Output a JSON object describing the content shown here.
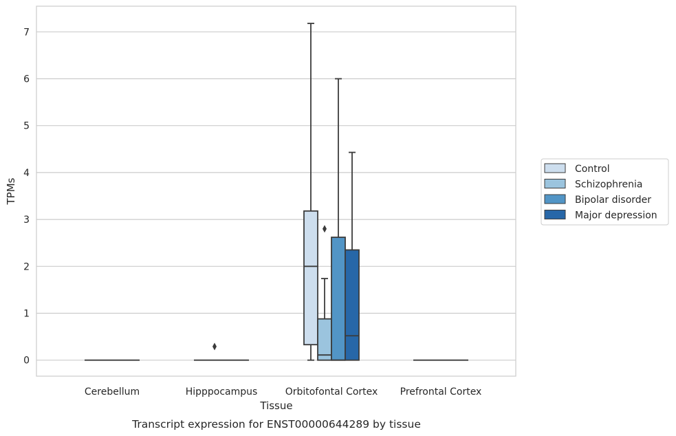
{
  "chart_data": {
    "type": "box",
    "caption": "Transcript expression for ENST00000644289 by tissue",
    "xlabel": "Tissue",
    "ylabel": "TPMs",
    "ylim": [
      -0.35,
      7.55
    ],
    "yticks": [
      0,
      1,
      2,
      3,
      4,
      5,
      6,
      7
    ],
    "grid": "horizontal",
    "legend_position": "right",
    "categories": [
      "Cerebellum",
      "Hipppocampus",
      "Orbitofontal Cortex",
      "Prefrontal Cortex"
    ],
    "series": [
      {
        "name": "Control",
        "color": "#cddeee",
        "boxes": [
          {
            "category": "Cerebellum",
            "min": 0,
            "q1": 0,
            "median": 0,
            "q3": 0,
            "max": 0,
            "outliers": []
          },
          {
            "category": "Hipppocampus",
            "min": 0,
            "q1": 0,
            "median": 0,
            "q3": 0,
            "max": 0,
            "outliers": []
          },
          {
            "category": "Orbitofontal Cortex",
            "min": 0,
            "q1": 0.33,
            "median": 2.0,
            "q3": 3.18,
            "max": 7.18,
            "outliers": []
          },
          {
            "category": "Prefrontal Cortex",
            "min": 0,
            "q1": 0,
            "median": 0,
            "q3": 0,
            "max": 0,
            "outliers": []
          }
        ]
      },
      {
        "name": "Schizophrenia",
        "color": "#9bc4de",
        "boxes": [
          {
            "category": "Cerebellum",
            "min": 0,
            "q1": 0,
            "median": 0,
            "q3": 0,
            "max": 0,
            "outliers": []
          },
          {
            "category": "Hipppocampus",
            "min": 0,
            "q1": 0,
            "median": 0,
            "q3": 0,
            "max": 0,
            "outliers": [
              0.29
            ]
          },
          {
            "category": "Orbitofontal Cortex",
            "min": 0,
            "q1": 0,
            "median": 0.11,
            "q3": 0.88,
            "max": 1.74,
            "outliers": [
              2.8
            ]
          },
          {
            "category": "Prefrontal Cortex",
            "min": 0,
            "q1": 0,
            "median": 0,
            "q3": 0,
            "max": 0,
            "outliers": []
          }
        ]
      },
      {
        "name": "Bipolar disorder",
        "color": "#5295c6",
        "boxes": [
          {
            "category": "Cerebellum",
            "min": 0,
            "q1": 0,
            "median": 0,
            "q3": 0,
            "max": 0,
            "outliers": []
          },
          {
            "category": "Hipppocampus",
            "min": 0,
            "q1": 0,
            "median": 0,
            "q3": 0,
            "max": 0,
            "outliers": []
          },
          {
            "category": "Orbitofontal Cortex",
            "min": 0,
            "q1": 0,
            "median": 0,
            "q3": 2.62,
            "max": 6.0,
            "outliers": []
          },
          {
            "category": "Prefrontal Cortex",
            "min": 0,
            "q1": 0,
            "median": 0,
            "q3": 0,
            "max": 0,
            "outliers": []
          }
        ]
      },
      {
        "name": "Major depression",
        "color": "#2767a8",
        "boxes": [
          {
            "category": "Cerebellum",
            "min": 0,
            "q1": 0,
            "median": 0,
            "q3": 0,
            "max": 0,
            "outliers": []
          },
          {
            "category": "Hipppocampus",
            "min": 0,
            "q1": 0,
            "median": 0,
            "q3": 0,
            "max": 0,
            "outliers": []
          },
          {
            "category": "Orbitofontal Cortex",
            "min": 0,
            "q1": 0,
            "median": 0.52,
            "q3": 2.35,
            "max": 4.43,
            "outliers": []
          },
          {
            "category": "Prefrontal Cortex",
            "min": 0,
            "q1": 0,
            "median": 0,
            "q3": 0,
            "max": 0,
            "outliers": []
          }
        ]
      }
    ]
  }
}
